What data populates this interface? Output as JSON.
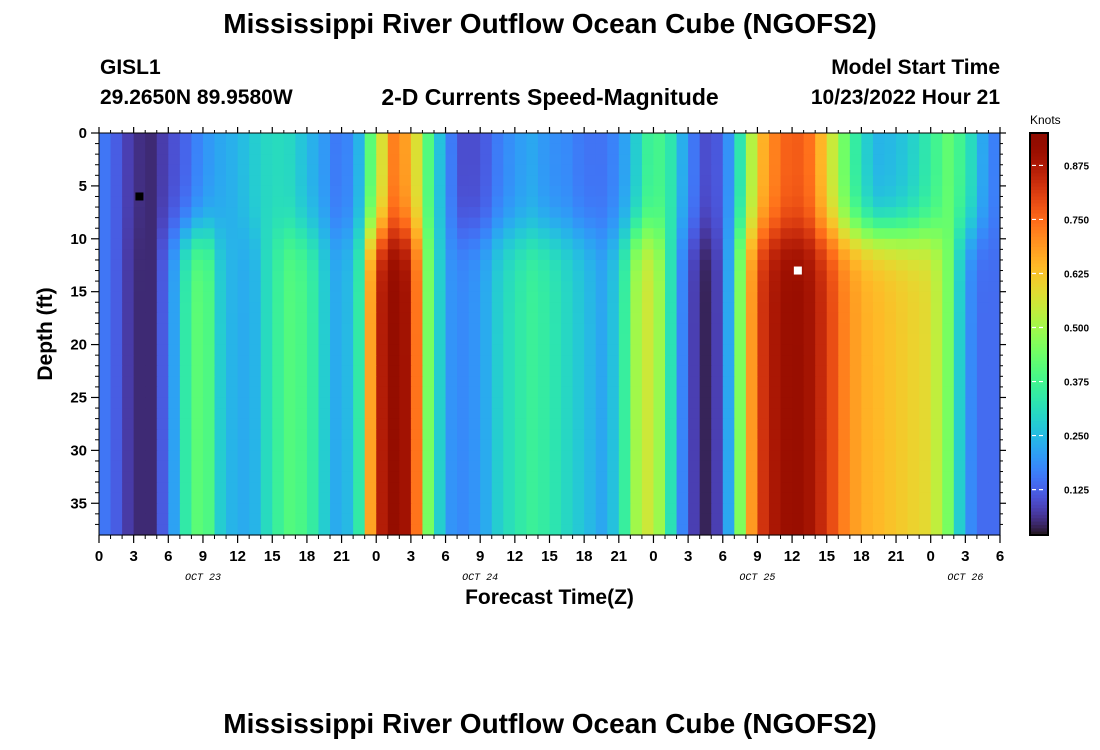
{
  "header": {
    "title": "Mississippi River Outflow Ocean Cube (NGOFS2)",
    "station": "GISL1",
    "coords": "29.2650N  89.9580W",
    "chart_title": "2-D Currents Speed-Magnitude",
    "model_label": "Model Start Time",
    "model_time": "10/23/2022 Hour 21"
  },
  "footer": {
    "title": "Mississippi River Outflow Ocean Cube (NGOFS2)"
  },
  "chart_data": {
    "type": "heatmap",
    "title": "2-D Currents Speed-Magnitude",
    "xlabel": "Forecast Time(Z)",
    "ylabel": "Depth (ft)",
    "x_tick_labels": [
      "0",
      "3",
      "6",
      "9",
      "12",
      "15",
      "18",
      "21",
      "0",
      "3",
      "6",
      "9",
      "12",
      "15",
      "18",
      "21",
      "0",
      "3",
      "6",
      "9",
      "12",
      "15",
      "18",
      "21",
      "0",
      "3",
      "6"
    ],
    "date_labels": [
      "OCT 23",
      "OCT 24",
      "OCT 25",
      "OCT 26"
    ],
    "y_ticks": [
      0,
      5,
      10,
      15,
      20,
      25,
      30,
      35
    ],
    "ylim": [
      0,
      38
    ],
    "y_inverted": true,
    "xlim_hours": [
      0,
      78
    ],
    "colorbar": {
      "unit": "Knots",
      "ticks": [
        "0.875",
        "0.750",
        "0.625",
        "0.500",
        "0.375",
        "0.250",
        "0.125"
      ],
      "range": [
        0.02,
        0.95
      ],
      "colormap": "turbo"
    },
    "markers": [
      {
        "label": "minimum",
        "hour": 3.5,
        "depth": 6,
        "color": "#000000"
      },
      {
        "label": "maximum",
        "hour": 60.5,
        "depth": 13,
        "color": "#ffffff"
      }
    ],
    "time_series_hours": [
      0,
      1.5,
      3,
      4.5,
      6,
      7.5,
      9,
      10.5,
      12,
      13.5,
      15,
      16.5,
      18,
      19.5,
      21,
      22.5,
      24,
      25.5,
      27,
      28.5,
      30,
      31.5,
      33,
      34.5,
      36,
      37.5,
      39,
      40.5,
      42,
      43.5,
      45,
      46.5,
      48,
      49.5,
      51,
      52.5,
      54,
      55.5,
      57,
      58.5,
      60,
      61.5,
      63,
      64.5,
      66,
      67.5,
      69,
      70.5,
      72,
      73.5,
      75,
      76.5,
      78
    ],
    "surface_speed_knots": [
      0.17,
      0.12,
      0.06,
      0.05,
      0.09,
      0.13,
      0.19,
      0.22,
      0.24,
      0.28,
      0.31,
      0.3,
      0.25,
      0.2,
      0.14,
      0.24,
      0.5,
      0.72,
      0.66,
      0.4,
      0.19,
      0.1,
      0.1,
      0.16,
      0.2,
      0.22,
      0.19,
      0.18,
      0.15,
      0.15,
      0.18,
      0.28,
      0.4,
      0.33,
      0.18,
      0.1,
      0.12,
      0.33,
      0.62,
      0.72,
      0.78,
      0.74,
      0.6,
      0.44,
      0.3,
      0.24,
      0.25,
      0.29,
      0.35,
      0.42,
      0.35,
      0.22,
      0.14
    ],
    "deep_speed_knots": [
      0.17,
      0.12,
      0.05,
      0.05,
      0.15,
      0.34,
      0.45,
      0.28,
      0.22,
      0.24,
      0.34,
      0.4,
      0.38,
      0.28,
      0.2,
      0.34,
      0.84,
      0.92,
      0.88,
      0.45,
      0.2,
      0.18,
      0.2,
      0.28,
      0.33,
      0.36,
      0.34,
      0.3,
      0.26,
      0.22,
      0.28,
      0.5,
      0.58,
      0.32,
      0.1,
      0.04,
      0.1,
      0.46,
      0.8,
      0.88,
      0.92,
      0.89,
      0.82,
      0.72,
      0.66,
      0.64,
      0.62,
      0.6,
      0.58,
      0.45,
      0.2,
      0.14,
      0.14
    ],
    "depth_transition_ft": 9.5
  }
}
